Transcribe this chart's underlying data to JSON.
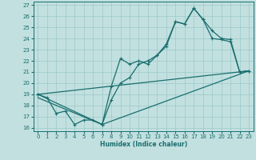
{
  "bg_color": "#c2e0e0",
  "grid_color": "#9cc8c8",
  "line_color": "#1a6e6e",
  "xlabel": "Humidex (Indice chaleur)",
  "xlim": [
    -0.5,
    23.5
  ],
  "ylim": [
    15.7,
    27.3
  ],
  "xticks": [
    0,
    1,
    2,
    3,
    4,
    5,
    6,
    7,
    8,
    9,
    10,
    11,
    12,
    13,
    14,
    15,
    16,
    17,
    18,
    19,
    20,
    21,
    22,
    23
  ],
  "yticks": [
    16,
    17,
    18,
    19,
    20,
    21,
    22,
    23,
    24,
    25,
    26,
    27
  ],
  "line1_x": [
    0,
    1,
    2,
    3,
    4,
    5,
    6,
    7,
    8,
    9,
    10,
    11,
    12,
    13,
    14,
    15,
    16,
    17,
    18,
    19,
    20,
    21,
    22,
    23
  ],
  "line1_y": [
    19.0,
    18.7,
    17.3,
    17.5,
    16.3,
    16.7,
    16.7,
    16.3,
    19.7,
    22.2,
    21.7,
    22.0,
    21.7,
    22.5,
    23.5,
    25.5,
    25.3,
    26.7,
    25.7,
    24.0,
    23.9,
    23.7,
    21.0,
    21.1
  ],
  "line2_x": [
    0,
    7,
    8,
    9,
    10,
    11,
    12,
    13,
    14,
    15,
    16,
    17,
    18,
    19,
    20,
    21,
    22,
    23
  ],
  "line2_y": [
    19.0,
    16.3,
    18.5,
    20.0,
    20.5,
    21.7,
    22.0,
    22.5,
    23.3,
    25.5,
    25.3,
    26.7,
    25.7,
    24.7,
    24.0,
    23.9,
    21.0,
    21.1
  ],
  "line3_x": [
    0,
    23
  ],
  "line3_y": [
    19.0,
    21.1
  ],
  "line4_x": [
    0,
    7,
    23
  ],
  "line4_y": [
    18.7,
    16.3,
    21.1
  ]
}
